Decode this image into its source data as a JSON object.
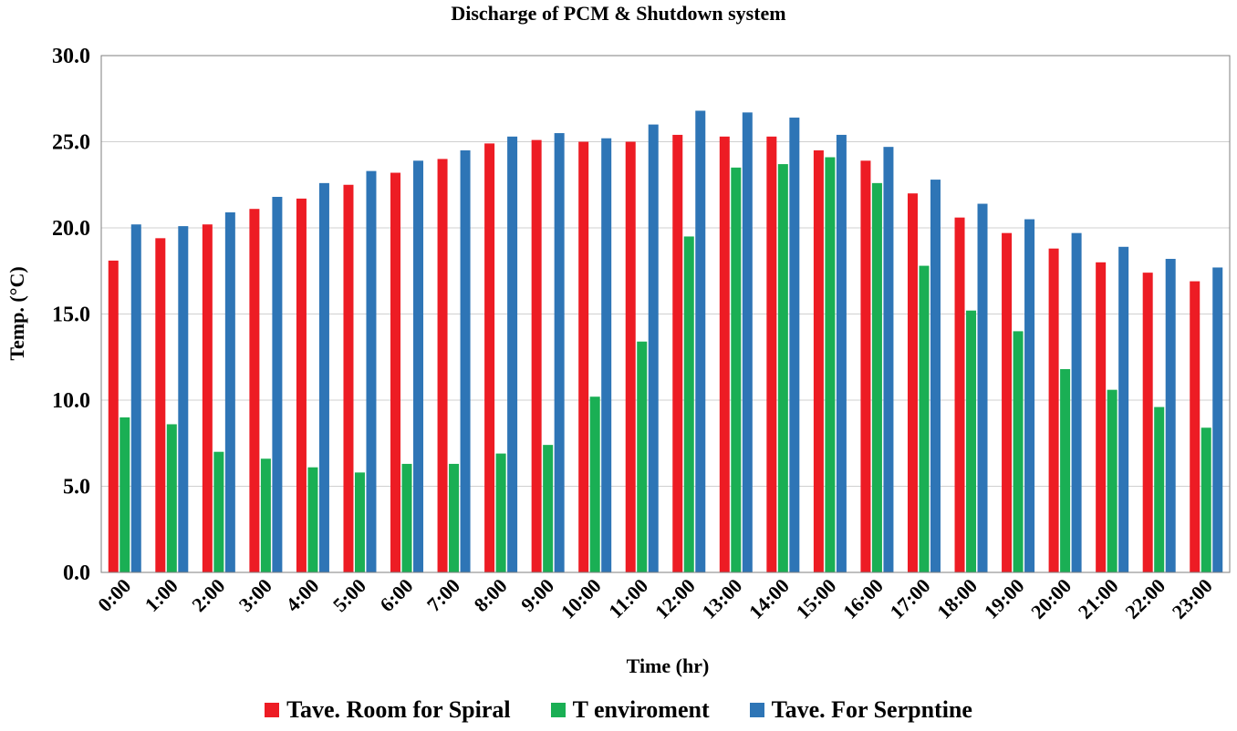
{
  "chart_data": {
    "type": "bar",
    "title": "Discharge of PCM & Shutdown system",
    "xlabel": "Time (hr)",
    "ylabel": "Temp. (°C)",
    "ylim": [
      0,
      30
    ],
    "yticks": [
      "0.0",
      "5.0",
      "10.0",
      "15.0",
      "20.0",
      "25.0",
      "30.0"
    ],
    "grid": true,
    "legend_position": "bottom",
    "categories": [
      "0:00",
      "1:00",
      "2:00",
      "3:00",
      "4:00",
      "5:00",
      "6:00",
      "7:00",
      "8:00",
      "9:00",
      "10:00",
      "11:00",
      "12:00",
      "13:00",
      "14:00",
      "15:00",
      "16:00",
      "17:00",
      "18:00",
      "19:00",
      "20:00",
      "21:00",
      "22:00",
      "23:00"
    ],
    "series": [
      {
        "name": "Tave. Room for Spiral",
        "color": "#ed1c24",
        "values": [
          18.1,
          19.4,
          20.2,
          21.1,
          21.7,
          22.5,
          23.2,
          24.0,
          24.9,
          25.1,
          25.0,
          25.0,
          25.4,
          25.3,
          25.3,
          24.5,
          23.9,
          22.0,
          20.6,
          19.7,
          18.8,
          18.0,
          17.4,
          16.9
        ]
      },
      {
        "name": "T enviroment",
        "color": "#1aaf54",
        "values": [
          9.0,
          8.6,
          7.0,
          6.6,
          6.1,
          5.8,
          6.3,
          6.3,
          6.9,
          7.4,
          10.2,
          13.4,
          19.5,
          23.5,
          23.7,
          24.1,
          22.6,
          17.8,
          15.2,
          14.0,
          11.8,
          10.6,
          9.6,
          8.4
        ]
      },
      {
        "name": "Tave. For Serpntine",
        "color": "#2e75b6",
        "values": [
          20.2,
          20.1,
          20.9,
          21.8,
          22.6,
          23.3,
          23.9,
          24.5,
          25.3,
          25.5,
          25.2,
          26.0,
          26.8,
          26.7,
          26.4,
          25.4,
          24.7,
          22.8,
          21.4,
          20.5,
          19.7,
          18.9,
          18.2,
          17.7
        ]
      }
    ]
  }
}
